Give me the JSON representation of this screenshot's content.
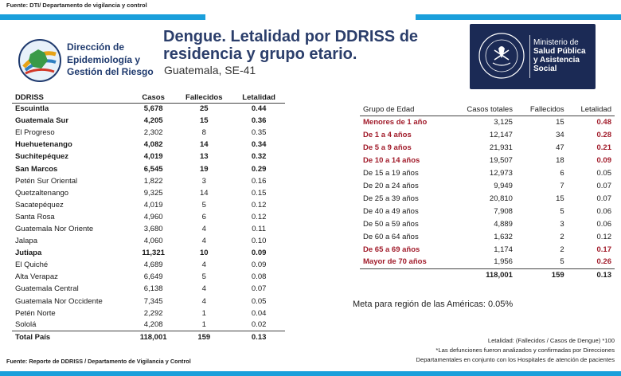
{
  "source_top": "Fuente: DTI/ Departamento de vigilancia y control",
  "org": {
    "lines": [
      "Dirección de",
      "Epidemiología y",
      "Gestión del Riesgo"
    ]
  },
  "title": {
    "line1": "Dengue. Letalidad por DDRISS de",
    "line2": "residencia y grupo etario.",
    "subtitle": "Guatemala, SE-41"
  },
  "ministry": {
    "line1": "Ministerio de",
    "line2": "Salud Pública",
    "line3": "y Asistencia",
    "line4": "Social"
  },
  "left_table": {
    "headers": [
      "DDRISS",
      "Casos",
      "Fallecidos",
      "Letalidad"
    ],
    "rows": [
      {
        "name": "Escuintla",
        "casos": "5,678",
        "fallecidos": "25",
        "letalidad": "0.44",
        "bold": true
      },
      {
        "name": "Guatemala Sur",
        "casos": "4,205",
        "fallecidos": "15",
        "letalidad": "0.36",
        "bold": true
      },
      {
        "name": "El Progreso",
        "casos": "2,302",
        "fallecidos": "8",
        "letalidad": "0.35",
        "bold": false
      },
      {
        "name": "Huehuetenango",
        "casos": "4,082",
        "fallecidos": "14",
        "letalidad": "0.34",
        "bold": true
      },
      {
        "name": "Suchitepéquez",
        "casos": "4,019",
        "fallecidos": "13",
        "letalidad": "0.32",
        "bold": true
      },
      {
        "name": "San Marcos",
        "casos": "6,545",
        "fallecidos": "19",
        "letalidad": "0.29",
        "bold": true
      },
      {
        "name": "Petén Sur Oriental",
        "casos": "1,822",
        "fallecidos": "3",
        "letalidad": "0.16",
        "bold": false
      },
      {
        "name": "Quetzaltenango",
        "casos": "9,325",
        "fallecidos": "14",
        "letalidad": "0.15",
        "bold": false
      },
      {
        "name": "Sacatepéquez",
        "casos": "4,019",
        "fallecidos": "5",
        "letalidad": "0.12",
        "bold": false
      },
      {
        "name": "Santa Rosa",
        "casos": "4,960",
        "fallecidos": "6",
        "letalidad": "0.12",
        "bold": false
      },
      {
        "name": "Guatemala Nor Oriente",
        "casos": "3,680",
        "fallecidos": "4",
        "letalidad": "0.11",
        "bold": false
      },
      {
        "name": "Jalapa",
        "casos": "4,060",
        "fallecidos": "4",
        "letalidad": "0.10",
        "bold": false
      },
      {
        "name": "Jutiapa",
        "casos": "11,321",
        "fallecidos": "10",
        "letalidad": "0.09",
        "bold": true
      },
      {
        "name": "El Quiché",
        "casos": "4,689",
        "fallecidos": "4",
        "letalidad": "0.09",
        "bold": false
      },
      {
        "name": "Alta Verapaz",
        "casos": "6,649",
        "fallecidos": "5",
        "letalidad": "0.08",
        "bold": false
      },
      {
        "name": "Guatemala Central",
        "casos": "6,138",
        "fallecidos": "4",
        "letalidad": "0.07",
        "bold": false
      },
      {
        "name": "Guatemala Nor Occidente",
        "casos": "7,345",
        "fallecidos": "4",
        "letalidad": "0.05",
        "bold": false
      },
      {
        "name": "Petén Norte",
        "casos": "2,292",
        "fallecidos": "1",
        "letalidad": "0.04",
        "bold": false
      },
      {
        "name": "Sololá",
        "casos": "4,208",
        "fallecidos": "1",
        "letalidad": "0.02",
        "bold": false
      }
    ],
    "total": {
      "name": "Total País",
      "casos": "118,001",
      "fallecidos": "159",
      "letalidad": "0.13"
    }
  },
  "right_table": {
    "headers": [
      "Grupo de Edad",
      "Casos totales",
      "Fallecidos",
      "Letalidad"
    ],
    "rows": [
      {
        "grupo": "Menores de 1 año",
        "casos": "3,125",
        "fallecidos": "15",
        "letalidad": "0.48",
        "highlight": true
      },
      {
        "grupo": "De 1 a 4 años",
        "casos": "12,147",
        "fallecidos": "34",
        "letalidad": "0.28",
        "highlight": true
      },
      {
        "grupo": "De 5 a 9 años",
        "casos": "21,931",
        "fallecidos": "47",
        "letalidad": "0.21",
        "highlight": true
      },
      {
        "grupo": "De 10 a 14 años",
        "casos": "19,507",
        "fallecidos": "18",
        "letalidad": "0.09",
        "highlight": true
      },
      {
        "grupo": "De 15 a 19 años",
        "casos": "12,973",
        "fallecidos": "6",
        "letalidad": "0.05",
        "highlight": false
      },
      {
        "grupo": "De 20 a 24 años",
        "casos": "9,949",
        "fallecidos": "7",
        "letalidad": "0.07",
        "highlight": false
      },
      {
        "grupo": "De 25 a 39 años",
        "casos": "20,810",
        "fallecidos": "15",
        "letalidad": "0.07",
        "highlight": false
      },
      {
        "grupo": "De 40 a 49 años",
        "casos": "7,908",
        "fallecidos": "5",
        "letalidad": "0.06",
        "highlight": false
      },
      {
        "grupo": "De 50 a 59 años",
        "casos": "4,889",
        "fallecidos": "3",
        "letalidad": "0.06",
        "highlight": false
      },
      {
        "grupo": "De 60 a 64 años",
        "casos": "1,632",
        "fallecidos": "2",
        "letalidad": "0.12",
        "highlight": false
      },
      {
        "grupo": "De 65 a 69 años",
        "casos": "1,174",
        "fallecidos": "2",
        "letalidad": "0.17",
        "highlight": true
      },
      {
        "grupo": "Mayor de 70 años",
        "casos": "1,956",
        "fallecidos": "5",
        "letalidad": "0.26",
        "highlight": true
      }
    ],
    "total": {
      "grupo": "",
      "casos": "118,001",
      "fallecidos": "159",
      "letalidad": "0.13"
    }
  },
  "meta": "Meta para región de las Américas: 0.05%",
  "notes": {
    "line1": "Letalidad: (Fallecidos / Casos de Dengue) *100",
    "line2": "*Las defunciones fueron analizados y confirmadas por Direcciones",
    "line3": "Departamentales en conjunto con los Hospitales de atención de pacientes"
  },
  "source_bottom": "Fuente: Reporte de DDRISS / Departamento de Vigilancia y Control",
  "colors": {
    "accent_bar": "#1a9fdb",
    "title": "#2b3e6b",
    "highlight": "#a11b2a",
    "ministry_bg": "#1b2a55"
  }
}
